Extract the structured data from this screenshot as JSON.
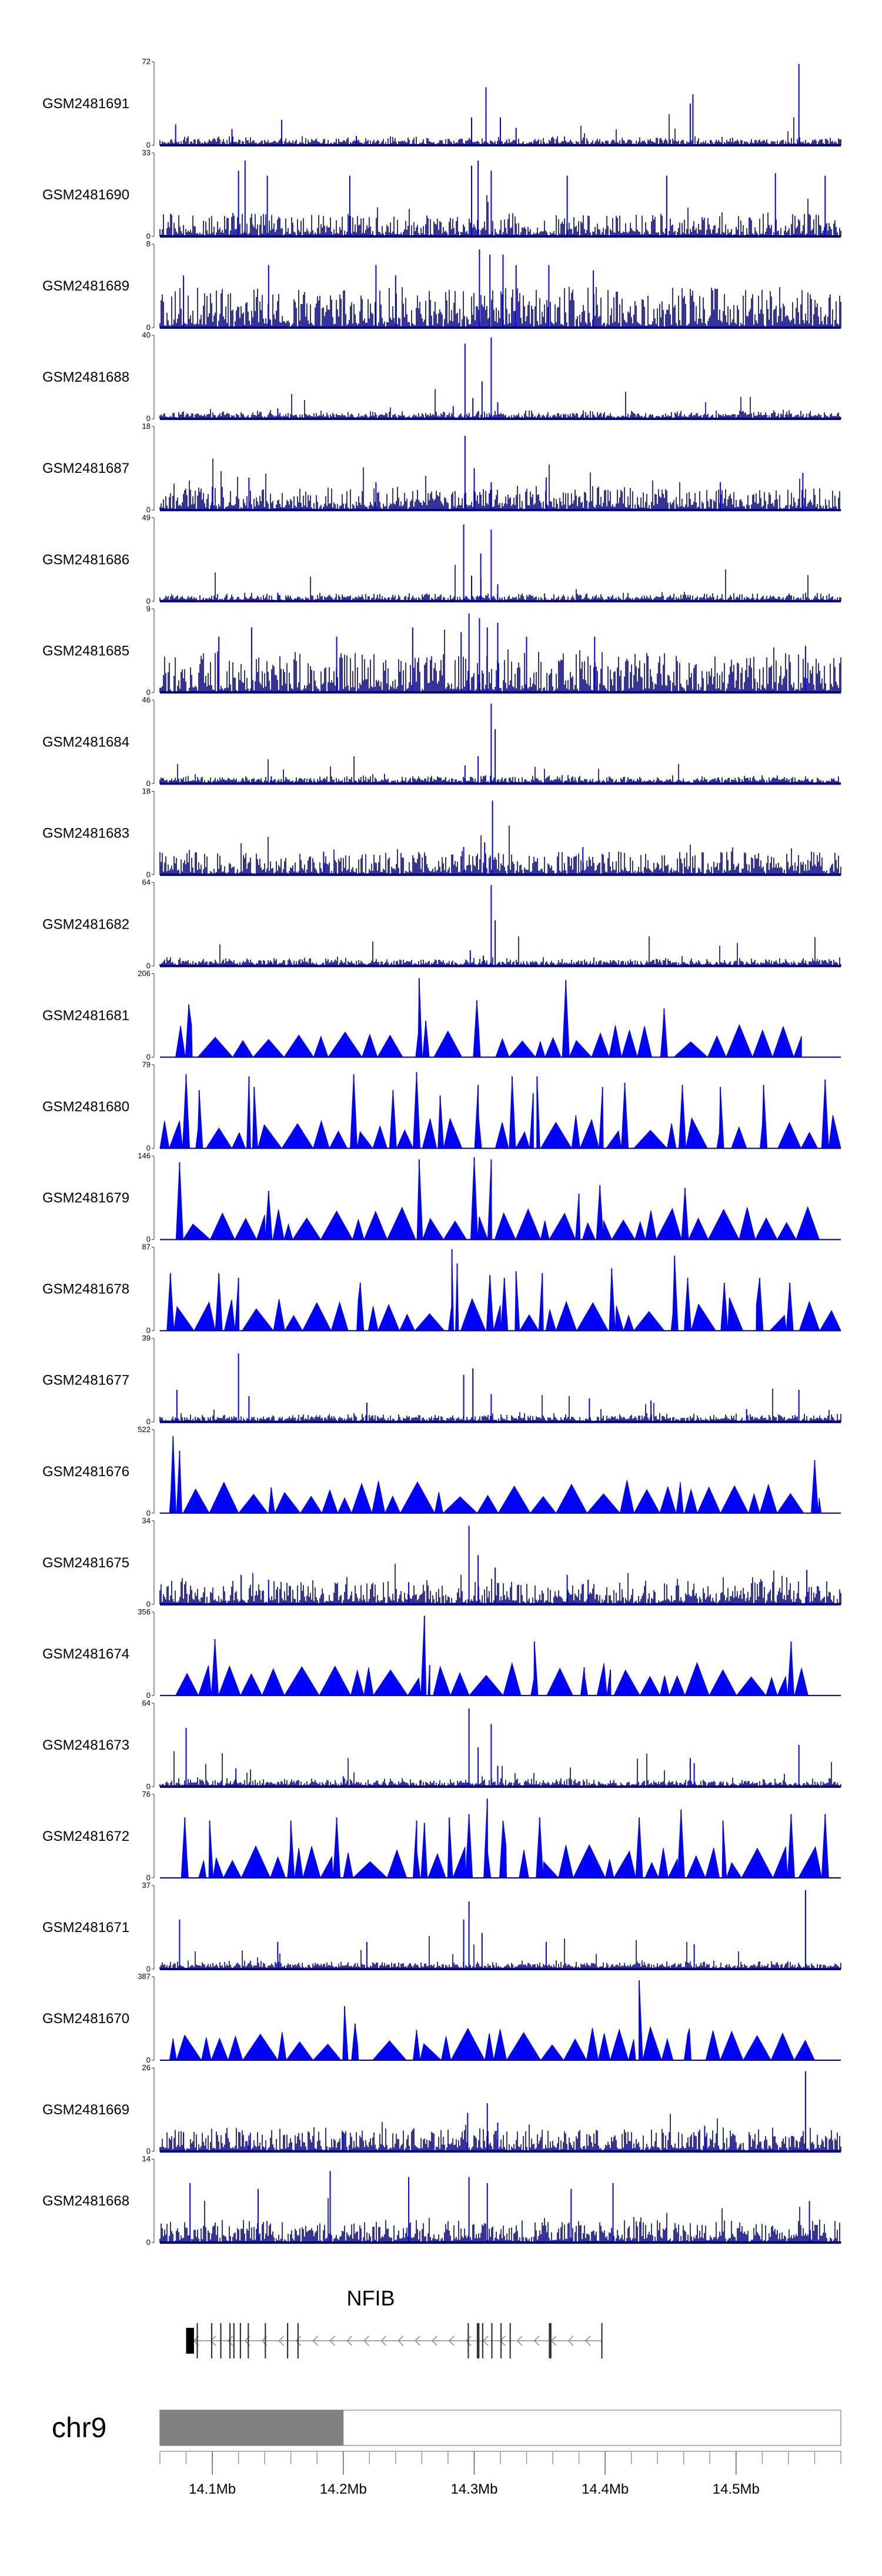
{
  "chart_data": {
    "type": "area",
    "chromosome": "chr9",
    "region": [
      14060000,
      14580000
    ],
    "series_color": "#0000ff",
    "baseline_color": "#000080",
    "tracks": [
      {
        "name": "GSM2481691",
        "ymax": "72",
        "ymin": "0",
        "style": "coverage",
        "peaks": [
          [
            14072000,
            18
          ],
          [
            14115000,
            14
          ],
          [
            14153000,
            22
          ],
          [
            14210000,
            8
          ],
          [
            14298000,
            24
          ],
          [
            14309000,
            50
          ],
          [
            14320000,
            24
          ],
          [
            14332000,
            15
          ],
          [
            14465000,
            36
          ],
          [
            14467000,
            44
          ],
          [
            14548000,
            70
          ]
        ]
      },
      {
        "name": "GSM2481690",
        "ymax": "33",
        "ymin": "0",
        "style": "coverage",
        "peaks": [
          [
            14120000,
            26
          ],
          [
            14125000,
            30
          ],
          [
            14142000,
            24
          ],
          [
            14205000,
            24
          ],
          [
            14298000,
            28
          ],
          [
            14303000,
            30
          ],
          [
            14313000,
            26
          ],
          [
            14371000,
            24
          ],
          [
            14447000,
            24
          ],
          [
            14530000,
            25
          ],
          [
            14568000,
            24
          ]
        ]
      },
      {
        "name": "GSM2481689",
        "ymax": "8",
        "ymin": "0",
        "style": "coverage",
        "peaks": [
          [
            14078000,
            5
          ],
          [
            14143000,
            6
          ],
          [
            14225000,
            6
          ],
          [
            14240000,
            5
          ],
          [
            14304000,
            7.5
          ],
          [
            14312000,
            7
          ],
          [
            14322000,
            7
          ],
          [
            14332000,
            6
          ],
          [
            14357000,
            6
          ],
          [
            14391000,
            5.5
          ]
        ]
      },
      {
        "name": "GSM2481688",
        "ymax": "40",
        "ymin": "0",
        "style": "coverage",
        "peaks": [
          [
            14150000,
            5
          ],
          [
            14284000,
            6
          ],
          [
            14293000,
            36
          ],
          [
            14299000,
            10
          ],
          [
            14306000,
            18
          ],
          [
            14313000,
            39
          ],
          [
            14318000,
            8
          ]
        ]
      },
      {
        "name": "GSM2481687",
        "ymax": "18",
        "ymin": "0",
        "style": "coverage",
        "peaks": [
          [
            14100000,
            5
          ],
          [
            14128000,
            7
          ],
          [
            14225000,
            6
          ],
          [
            14293000,
            16
          ],
          [
            14300000,
            9
          ],
          [
            14313000,
            6
          ],
          [
            14355000,
            7
          ],
          [
            14488000,
            6
          ],
          [
            14551000,
            8
          ]
        ]
      },
      {
        "name": "GSM2481686",
        "ymax": "49",
        "ymin": "0",
        "style": "coverage",
        "peaks": [
          [
            14150000,
            5
          ],
          [
            14292000,
            45
          ],
          [
            14298000,
            15
          ],
          [
            14305000,
            28
          ],
          [
            14313000,
            42
          ],
          [
            14318000,
            10
          ]
        ]
      },
      {
        "name": "GSM2481685",
        "ymax": "9",
        "ymin": "0",
        "style": "coverage",
        "peaks": [
          [
            14105000,
            6
          ],
          [
            14130000,
            7
          ],
          [
            14195000,
            6
          ],
          [
            14253000,
            7
          ],
          [
            14290000,
            6.5
          ],
          [
            14296000,
            8.5
          ],
          [
            14304000,
            8
          ],
          [
            14310000,
            7
          ],
          [
            14318000,
            7.5
          ],
          [
            14340000,
            6
          ],
          [
            14392000,
            6
          ],
          [
            14553000,
            5
          ]
        ]
      },
      {
        "name": "GSM2481684",
        "ymax": "46",
        "ymin": "0",
        "style": "coverage",
        "peaks": [
          [
            14145000,
            4
          ],
          [
            14293000,
            10
          ],
          [
            14303000,
            15
          ],
          [
            14313000,
            44
          ],
          [
            14316000,
            30
          ]
        ]
      },
      {
        "name": "GSM2481683",
        "ymax": "18",
        "ymin": "0",
        "style": "coverage",
        "peaks": [
          [
            14185000,
            5
          ],
          [
            14292000,
            6
          ],
          [
            14308000,
            7
          ],
          [
            14314000,
            16
          ],
          [
            14383000,
            6
          ]
        ]
      },
      {
        "name": "GSM2481682",
        "ymax": "64",
        "ymin": "0",
        "style": "coverage",
        "peaks": [
          [
            14145000,
            3
          ],
          [
            14297000,
            12
          ],
          [
            14307000,
            8
          ],
          [
            14313000,
            62
          ],
          [
            14316000,
            35
          ]
        ]
      },
      {
        "name": "GSM2481681",
        "ymax": "206",
        "ymin": "0",
        "style": "sparse",
        "start": 14072000,
        "end": 14550000,
        "peaks": [
          [
            14082000,
            130
          ],
          [
            14258000,
            195
          ],
          [
            14263000,
            90
          ],
          [
            14302000,
            140
          ],
          [
            14370000,
            190
          ],
          [
            14445000,
            120
          ]
        ]
      },
      {
        "name": "GSM2481680",
        "ymax": "79",
        "ymin": "0",
        "style": "sparse",
        "start": 14060000,
        "end": 14580000,
        "peaks": [
          [
            14080000,
            70
          ],
          [
            14090000,
            55
          ],
          [
            14128000,
            68
          ],
          [
            14132000,
            58
          ],
          [
            14208000,
            70
          ],
          [
            14238000,
            55
          ],
          [
            14256000,
            72
          ],
          [
            14274000,
            50
          ],
          [
            14303000,
            60
          ],
          [
            14329000,
            68
          ],
          [
            14345000,
            52
          ],
          [
            14348000,
            68
          ],
          [
            14398000,
            58
          ],
          [
            14415000,
            62
          ],
          [
            14459000,
            60
          ],
          [
            14488000,
            58
          ],
          [
            14521000,
            60
          ],
          [
            14568000,
            65
          ]
        ]
      },
      {
        "name": "GSM2481679",
        "ymax": "146",
        "ymin": "0",
        "style": "sparse",
        "start": 14072000,
        "end": 14565000,
        "peaks": [
          [
            14075000,
            135
          ],
          [
            14143000,
            85
          ],
          [
            14258000,
            140
          ],
          [
            14300000,
            144
          ],
          [
            14313000,
            140
          ],
          [
            14380000,
            80
          ],
          [
            14396000,
            95
          ],
          [
            14461000,
            90
          ]
        ]
      },
      {
        "name": "GSM2481678",
        "ymax": "87",
        "ymin": "0",
        "style": "sparse",
        "start": 14060000,
        "end": 14580000,
        "peaks": [
          [
            14068000,
            60
          ],
          [
            14105000,
            60
          ],
          [
            14120000,
            55
          ],
          [
            14213000,
            50
          ],
          [
            14283000,
            85
          ],
          [
            14287000,
            70
          ],
          [
            14312000,
            58
          ],
          [
            14323000,
            55
          ],
          [
            14332000,
            62
          ],
          [
            14352000,
            60
          ],
          [
            14405000,
            65
          ],
          [
            14453000,
            78
          ],
          [
            14463000,
            55
          ],
          [
            14491000,
            50
          ],
          [
            14518000,
            55
          ],
          [
            14541000,
            50
          ]
        ]
      },
      {
        "name": "GSM2481677",
        "ymax": "39",
        "ymin": "0",
        "style": "coverage",
        "peaks": [
          [
            14073000,
            15
          ],
          [
            14120000,
            32
          ],
          [
            14128000,
            12
          ],
          [
            14218000,
            9
          ],
          [
            14292000,
            22
          ],
          [
            14299000,
            25
          ],
          [
            14313000,
            13
          ],
          [
            14388000,
            11
          ],
          [
            14435000,
            10
          ],
          [
            14508000,
            6
          ],
          [
            14548000,
            15
          ]
        ]
      },
      {
        "name": "GSM2481676",
        "ymax": "522",
        "ymin": "0",
        "style": "sparse",
        "start": 14060000,
        "end": 14565000,
        "peaks": [
          [
            14070000,
            480
          ],
          [
            14075000,
            390
          ],
          [
            14145000,
            160
          ],
          [
            14457000,
            160
          ],
          [
            14560000,
            330
          ]
        ]
      },
      {
        "name": "GSM2481675",
        "ymax": "34",
        "ymin": "0",
        "style": "coverage",
        "peaks": [
          [
            14122000,
            12
          ],
          [
            14143000,
            10
          ],
          [
            14250000,
            9
          ],
          [
            14296000,
            32
          ],
          [
            14303000,
            20
          ],
          [
            14316000,
            15
          ],
          [
            14371000,
            12
          ],
          [
            14387000,
            10
          ],
          [
            14554000,
            14
          ]
        ]
      },
      {
        "name": "GSM2481674",
        "ymax": "356",
        "ymin": "0",
        "style": "sparse",
        "start": 14072000,
        "end": 14555000,
        "peaks": [
          [
            14102000,
            240
          ],
          [
            14262000,
            340
          ],
          [
            14266000,
            130
          ],
          [
            14346000,
            230
          ],
          [
            14384000,
            120
          ],
          [
            14404000,
            110
          ],
          [
            14542000,
            230
          ]
        ]
      },
      {
        "name": "GSM2481673",
        "ymax": "64",
        "ymin": "0",
        "style": "coverage",
        "peaks": [
          [
            14080000,
            45
          ],
          [
            14118000,
            14
          ],
          [
            14200000,
            8
          ],
          [
            14296000,
            60
          ],
          [
            14303000,
            30
          ],
          [
            14313000,
            48
          ],
          [
            14318000,
            16
          ],
          [
            14465000,
            22
          ],
          [
            14468000,
            18
          ],
          [
            14548000,
            32
          ]
        ]
      },
      {
        "name": "GSM2481672",
        "ymax": "76",
        "ymin": "0",
        "style": "sparse",
        "start": 14072000,
        "end": 14575000,
        "peaks": [
          [
            14079000,
            55
          ],
          [
            14098000,
            52
          ],
          [
            14160000,
            52
          ],
          [
            14195000,
            55
          ],
          [
            14256000,
            52
          ],
          [
            14262000,
            50
          ],
          [
            14281000,
            55
          ],
          [
            14296000,
            58
          ],
          [
            14310000,
            72
          ],
          [
            14322000,
            52
          ],
          [
            14350000,
            55
          ],
          [
            14426000,
            55
          ],
          [
            14458000,
            62
          ],
          [
            14490000,
            52
          ],
          [
            14542000,
            58
          ],
          [
            14568000,
            58
          ]
        ]
      },
      {
        "name": "GSM2481671",
        "ymax": "37",
        "ymin": "0",
        "style": "coverage",
        "peaks": [
          [
            14075000,
            22
          ],
          [
            14150000,
            12
          ],
          [
            14218000,
            12
          ],
          [
            14292000,
            22
          ],
          [
            14296000,
            30
          ],
          [
            14306000,
            16
          ],
          [
            14355000,
            12
          ],
          [
            14468000,
            11
          ],
          [
            14553000,
            35
          ]
        ]
      },
      {
        "name": "GSM2481670",
        "ymax": "387",
        "ymin": "0",
        "style": "sparse",
        "start": 14066000,
        "end": 14560000,
        "peaks": [
          [
            14070000,
            100
          ],
          [
            14201000,
            250
          ],
          [
            14209000,
            170
          ],
          [
            14256000,
            140
          ],
          [
            14426000,
            370
          ],
          [
            14463000,
            120
          ]
        ]
      },
      {
        "name": "GSM2481669",
        "ymax": "26",
        "ymin": "0",
        "style": "coverage",
        "peaks": [
          [
            14078000,
            6
          ],
          [
            14128000,
            5
          ],
          [
            14200000,
            6
          ],
          [
            14295000,
            12
          ],
          [
            14310000,
            15
          ],
          [
            14318000,
            9
          ],
          [
            14476000,
            8
          ],
          [
            14553000,
            25
          ]
        ]
      },
      {
        "name": "GSM2481668",
        "ymax": "14",
        "ymin": "0",
        "style": "coverage",
        "peaks": [
          [
            14083000,
            10
          ],
          [
            14135000,
            9
          ],
          [
            14190000,
            12
          ],
          [
            14250000,
            11
          ],
          [
            14296000,
            11
          ],
          [
            14310000,
            10
          ],
          [
            14374000,
            9
          ],
          [
            14406000,
            10
          ],
          [
            14556000,
            7
          ]
        ]
      }
    ],
    "gene": {
      "name": "NFIB",
      "strand": "-",
      "start": 14080000,
      "end": 14398000,
      "exons": [
        [
          14080000,
          14086000
        ],
        [
          14088000,
          14089000
        ],
        [
          14099000,
          14100000
        ],
        [
          14106000,
          14107000
        ],
        [
          14113000,
          14114000
        ],
        [
          14116000,
          14117000
        ],
        [
          14121000,
          14122000
        ],
        [
          14127000,
          14128000
        ],
        [
          14140000,
          14141000
        ],
        [
          14157000,
          14158000
        ],
        [
          14165000,
          14166000
        ],
        [
          14295000,
          14296000
        ],
        [
          14302000,
          14304000
        ],
        [
          14306000,
          14307000
        ],
        [
          14313000,
          14314000
        ],
        [
          14320000,
          14321000
        ],
        [
          14327000,
          14328000
        ],
        [
          14357000,
          14359000
        ],
        [
          14397000,
          14398000
        ]
      ]
    },
    "ideogram": {
      "highlight": [
        14060000,
        14200000
      ],
      "tick_labels": [
        "14.1Mb",
        "14.2Mb",
        "14.3Mb",
        "14.4Mb",
        "14.5Mb"
      ],
      "tick_positions": [
        14100000,
        14200000,
        14300000,
        14400000,
        14500000
      ],
      "minor_tick_step": 20000
    }
  }
}
